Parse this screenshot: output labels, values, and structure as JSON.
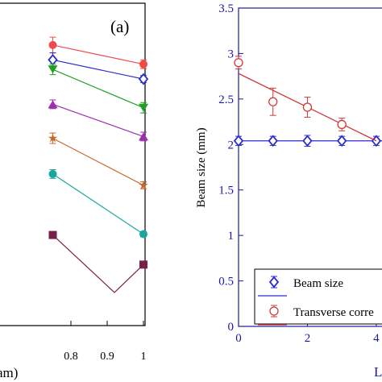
{
  "chart_data": [
    {
      "type": "line",
      "panel_label": "(a)",
      "xlabel_visible": "am)",
      "ylabel": "",
      "xlim": [
        0.6,
        1.0
      ],
      "x_ticks": [
        0.8,
        0.9,
        1
      ],
      "x_tick_labels": [
        "0.8",
        "0.9",
        "1"
      ],
      "grid": false,
      "series": [
        {
          "marker": "circle",
          "color": "#f04b4b",
          "points": [
            [
              0.75,
              3.22
            ],
            [
              1.0,
              3.0
            ]
          ],
          "errors": [
            0.09,
            0.05
          ]
        },
        {
          "marker": "diamond-open",
          "color": "#2a2ad0",
          "points": [
            [
              0.75,
              3.05
            ],
            [
              1.0,
              2.83
            ]
          ],
          "errors": [
            0.08,
            0.04
          ]
        },
        {
          "marker": "triangle-down",
          "color": "#22a022",
          "points": [
            [
              0.75,
              2.94
            ],
            [
              1.0,
              2.5
            ]
          ],
          "errors": [
            0.06,
            0.06
          ]
        },
        {
          "marker": "triangle-up",
          "color": "#9b2fb0",
          "points": [
            [
              0.75,
              2.54
            ],
            [
              1.0,
              2.17
            ]
          ],
          "errors": [
            0.05,
            0.05
          ]
        },
        {
          "marker": "star",
          "color": "#c8672a",
          "points": [
            [
              0.75,
              2.15
            ],
            [
              1.0,
              1.61
            ]
          ],
          "errors": [
            0.06,
            0.04
          ]
        },
        {
          "marker": "circle",
          "color": "#1aa59f",
          "points": [
            [
              0.75,
              1.74
            ],
            [
              1.0,
              1.05
            ]
          ],
          "errors": [
            0.05,
            0.03
          ]
        },
        {
          "marker": "square",
          "color": "#7a1f4a",
          "points": [
            [
              0.75,
              1.04
            ],
            [
              0.92,
              0.38
            ],
            [
              1.0,
              0.7
            ]
          ],
          "errors": [
            0.0,
            0.0,
            0.0
          ]
        }
      ]
    },
    {
      "type": "scatter",
      "ylabel": "Beam size (mm)",
      "xlabel_visible": "L",
      "xlim": [
        0,
        4.4
      ],
      "ylim": [
        0,
        3.5
      ],
      "x_ticks": [
        0,
        2,
        4
      ],
      "y_ticks": [
        0,
        0.5,
        1,
        1.5,
        2,
        2.5,
        3,
        3.5
      ],
      "grid": false,
      "series": [
        {
          "name": "Beam size",
          "marker": "diamond-open",
          "color": "#2a2ad0",
          "x": [
            0,
            1,
            2,
            3,
            4
          ],
          "y": [
            2.04,
            2.04,
            2.04,
            2.04,
            2.04
          ],
          "errors": [
            0.05,
            0.05,
            0.06,
            0.05,
            0.05
          ],
          "fit": {
            "x": [
              0,
              4.4
            ],
            "y": [
              2.04,
              2.04
            ]
          }
        },
        {
          "name": "Transverse corre",
          "marker": "circle-open",
          "color": "#d03a3a",
          "x": [
            0,
            1,
            2,
            3
          ],
          "y": [
            2.9,
            2.47,
            2.41,
            2.22
          ],
          "errors": [
            0.07,
            0.15,
            0.11,
            0.07
          ],
          "fit": {
            "x": [
              0,
              4.0
            ],
            "y": [
              2.78,
              2.04
            ]
          }
        }
      ],
      "legend": {
        "placement": "bottom"
      }
    }
  ]
}
